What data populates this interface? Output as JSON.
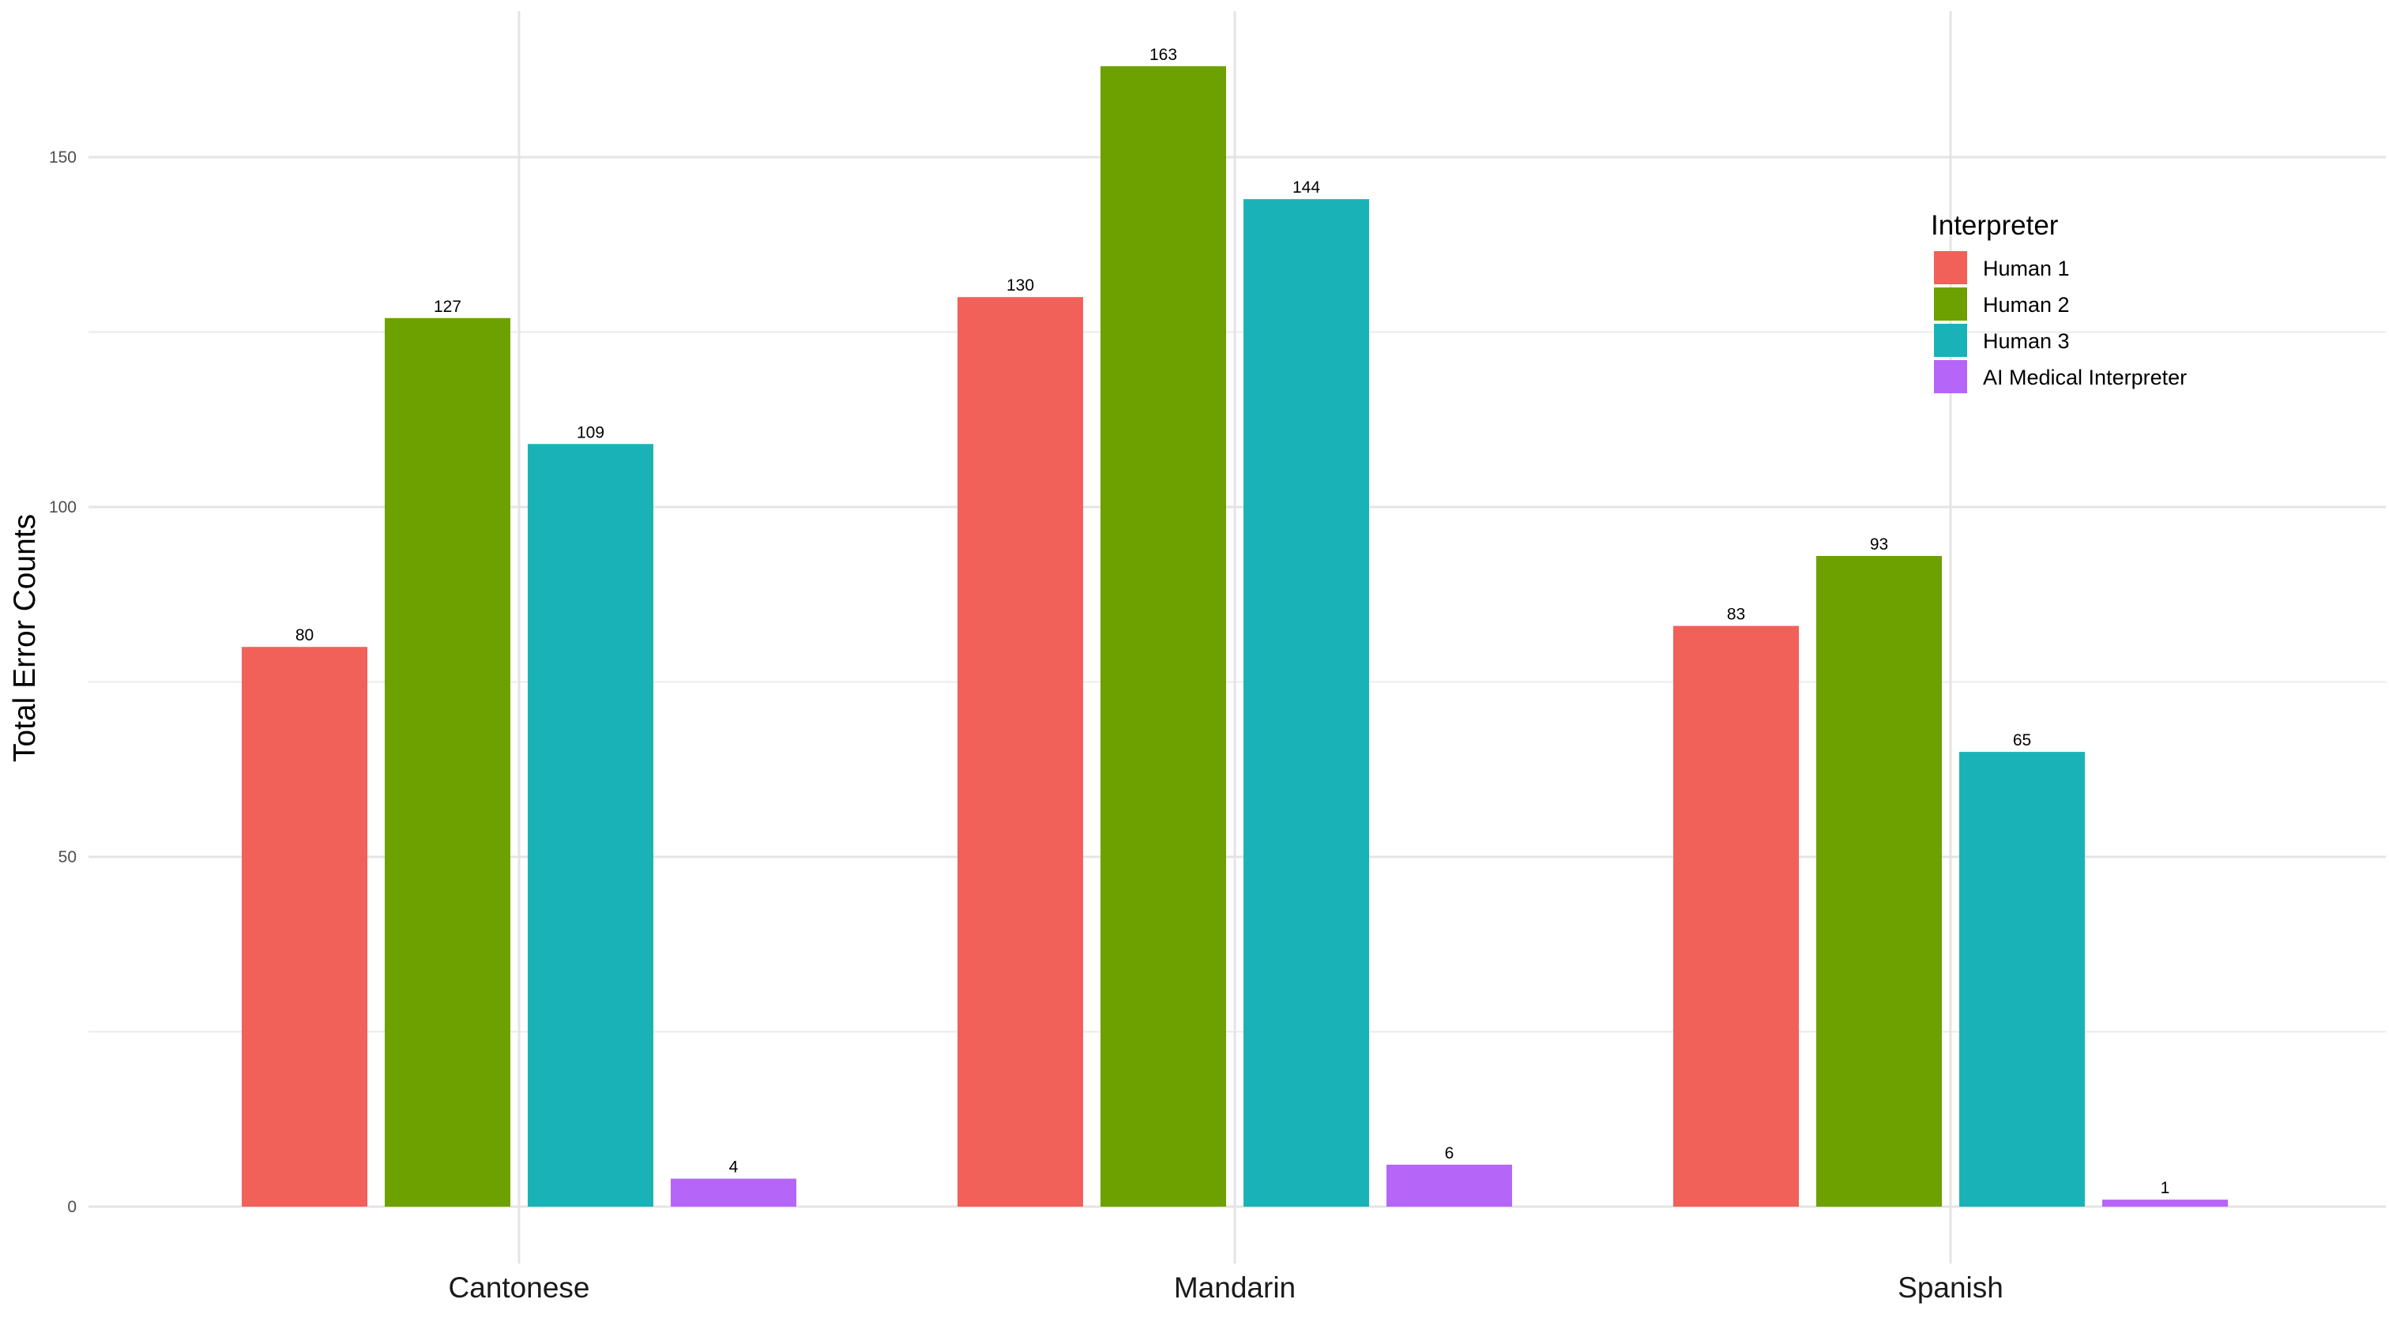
{
  "chart_data": {
    "type": "bar",
    "categories": [
      "Cantonese",
      "Mandarin",
      "Spanish"
    ],
    "series": [
      {
        "name": "Human 1",
        "values": [
          80,
          130,
          83
        ],
        "color": "#F2605A"
      },
      {
        "name": "Human 2",
        "values": [
          127,
          163,
          93
        ],
        "color": "#6DA100"
      },
      {
        "name": "Human 3",
        "values": [
          109,
          144,
          65
        ],
        "color": "#19B3B7"
      },
      {
        "name": "AI Medical Interpreter",
        "values": [
          4,
          6,
          1
        ],
        "color": "#B565F7"
      }
    ],
    "title": "",
    "xlabel": "",
    "ylabel": "Total Error Counts",
    "ylim": [
      0,
      163
    ],
    "yticks": [
      "0",
      "50",
      "100",
      "150"
    ],
    "grid": true,
    "legend": {
      "title": "Interpreter",
      "position": "top-right"
    },
    "data_labels": true
  }
}
